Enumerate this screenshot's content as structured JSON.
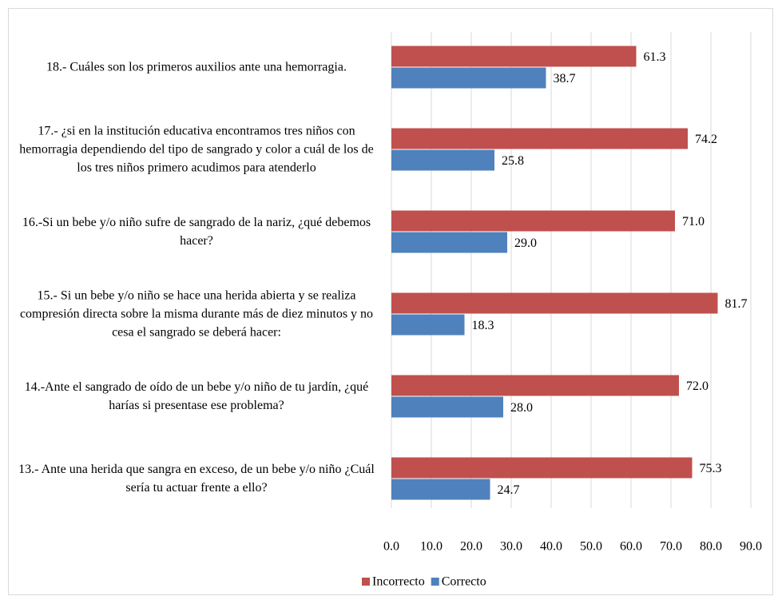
{
  "chart_data": {
    "type": "bar",
    "orientation": "horizontal",
    "categories": [
      "18.- Cuáles son los primeros auxilios ante una hemorragia.",
      "17.- ¿si en la institución educativa encontramos tres niños con hemorragia dependiendo del tipo de sangrado y color  a cuál de los de los tres niños primero acudimos para atenderlo",
      "16.-Si un bebe y/o niño sufre de sangrado de la nariz, ¿qué debemos hacer?",
      "15.-  Si un bebe y/o niño se hace una herida abierta y se realiza compresión directa sobre la misma durante más de diez minutos y no cesa el sangrado se deberá hacer:",
      "14.-Ante el sangrado de oído de un bebe y/o niño de tu jardín, ¿qué harías si presentase ese problema?",
      "13.- Ante una herida que sangra en exceso, de un bebe y/o niño ¿Cuál sería tu actuar frente a ello?"
    ],
    "series": [
      {
        "name": "Incorrecto",
        "color": "#c0504d",
        "values": [
          61.3,
          74.2,
          71.0,
          81.7,
          72.0,
          75.3
        ],
        "value_labels": [
          "61.3",
          "74.2",
          "71.0",
          "81.7",
          "72.0",
          "75.3"
        ]
      },
      {
        "name": "Correcto",
        "color": "#4f81bd",
        "values": [
          38.7,
          25.8,
          29.0,
          18.3,
          28.0,
          24.7
        ],
        "value_labels": [
          "38.7",
          "25.8",
          "29.0",
          "18.3",
          "28.0",
          "24.7"
        ]
      }
    ],
    "xlim": [
      0,
      90
    ],
    "xticks": [
      {
        "value": 0,
        "label": "0.0"
      },
      {
        "value": 10,
        "label": "10.0"
      },
      {
        "value": 20,
        "label": "20.0"
      },
      {
        "value": 30,
        "label": "30.0"
      },
      {
        "value": 40,
        "label": "40.0"
      },
      {
        "value": 50,
        "label": "50.0"
      },
      {
        "value": 60,
        "label": "60.0"
      },
      {
        "value": 70,
        "label": "70.0"
      },
      {
        "value": 80,
        "label": "80.0"
      },
      {
        "value": 90,
        "label": "90.0"
      }
    ],
    "grid": true,
    "legend": "bottom"
  }
}
